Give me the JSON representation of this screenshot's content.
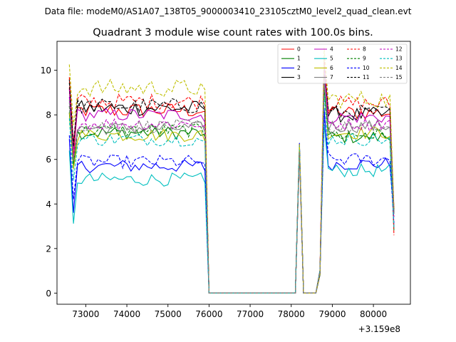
{
  "suptitle": "Data file: modeM0/AS1A07_138T05_9000003410_23105cztM0_level2_quad_clean.evt",
  "chart_data": {
    "type": "line",
    "title": "Quadrant 3 module wise count rates with 100.0s bins.",
    "xlabel": "",
    "ylabel": "",
    "x_offset_label": "+3.159e8",
    "xlim": [
      72300,
      80900
    ],
    "ylim": [
      -0.5,
      11.3
    ],
    "xticks": [
      73000,
      74000,
      75000,
      76000,
      77000,
      78000,
      79000,
      80000
    ],
    "xtick_labels": [
      "73000",
      "74000",
      "75000",
      "76000",
      "77000",
      "78000",
      "79000",
      "80000"
    ],
    "yticks": [
      0,
      2,
      4,
      6,
      8,
      10
    ],
    "ytick_labels": [
      "0",
      "2",
      "4",
      "6",
      "8",
      "10"
    ],
    "gaps": {
      "drop_time": 76000,
      "zero_level": 0,
      "segment_two_start": 78100,
      "spike_time": 78200,
      "spike_value": 6.7,
      "dip_time": 78400,
      "dip_value": 0,
      "segment_three_start": 78800
    },
    "series": [
      {
        "name": "0",
        "color": "#ff0000",
        "dash": false,
        "level1": 8.2,
        "level3": 8.1,
        "amp": 0.35
      },
      {
        "name": "1",
        "color": "#008000",
        "dash": false,
        "level1": 7.2,
        "level3": 7.0,
        "amp": 0.3
      },
      {
        "name": "2",
        "color": "#0000ff",
        "dash": false,
        "level1": 5.7,
        "level3": 5.8,
        "amp": 0.3
      },
      {
        "name": "3",
        "color": "#000000",
        "dash": false,
        "level1": 8.3,
        "level3": 8.0,
        "amp": 0.35
      },
      {
        "name": "4",
        "color": "#bf00bf",
        "dash": false,
        "level1": 8.0,
        "level3": 7.9,
        "amp": 0.3
      },
      {
        "name": "5",
        "color": "#00bfbf",
        "dash": false,
        "level1": 5.1,
        "level3": 5.5,
        "amp": 0.3
      },
      {
        "name": "6",
        "color": "#bfbf00",
        "dash": false,
        "level1": 7.1,
        "level3": 7.2,
        "amp": 0.3
      },
      {
        "name": "7",
        "color": "#808080",
        "dash": false,
        "level1": 7.4,
        "level3": 7.5,
        "amp": 0.3
      },
      {
        "name": "8",
        "color": "#ff0000",
        "dash": true,
        "level1": 8.6,
        "level3": 8.5,
        "amp": 0.35
      },
      {
        "name": "9",
        "color": "#008000",
        "dash": true,
        "level1": 7.3,
        "level3": 7.1,
        "amp": 0.3
      },
      {
        "name": "10",
        "color": "#0000ff",
        "dash": true,
        "level1": 5.9,
        "level3": 6.0,
        "amp": 0.3
      },
      {
        "name": "11",
        "color": "#000000",
        "dash": true,
        "level1": 8.4,
        "level3": 8.1,
        "amp": 0.35
      },
      {
        "name": "12",
        "color": "#bf00bf",
        "dash": true,
        "level1": 7.6,
        "level3": 7.6,
        "amp": 0.3
      },
      {
        "name": "13",
        "color": "#00bfbf",
        "dash": true,
        "level1": 6.9,
        "level3": 6.9,
        "amp": 0.3
      },
      {
        "name": "14",
        "color": "#bfbf00",
        "dash": true,
        "level1": 9.2,
        "level3": 8.7,
        "amp": 0.4
      },
      {
        "name": "15",
        "color": "#808080",
        "dash": true,
        "level1": 7.5,
        "level3": 7.4,
        "amp": 0.3
      }
    ]
  }
}
